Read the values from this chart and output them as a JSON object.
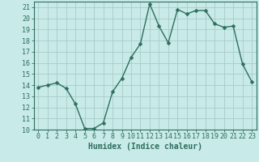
{
  "x": [
    0,
    1,
    2,
    3,
    4,
    5,
    6,
    7,
    8,
    9,
    10,
    11,
    12,
    13,
    14,
    15,
    16,
    17,
    18,
    19,
    20,
    21,
    22,
    23
  ],
  "y": [
    13.8,
    14.0,
    14.2,
    13.7,
    12.3,
    10.1,
    10.1,
    10.6,
    13.4,
    14.6,
    16.5,
    17.7,
    21.3,
    19.3,
    17.8,
    20.8,
    20.4,
    20.7,
    20.7,
    19.5,
    19.2,
    19.3,
    15.9,
    14.3
  ],
  "xlabel": "Humidex (Indice chaleur)",
  "ylim": [
    10,
    21.5
  ],
  "xlim": [
    -0.5,
    23.5
  ],
  "yticks": [
    10,
    11,
    12,
    13,
    14,
    15,
    16,
    17,
    18,
    19,
    20,
    21
  ],
  "xticks": [
    0,
    1,
    2,
    3,
    4,
    5,
    6,
    7,
    8,
    9,
    10,
    11,
    12,
    13,
    14,
    15,
    16,
    17,
    18,
    19,
    20,
    21,
    22,
    23
  ],
  "line_color": "#2d6e5e",
  "marker_color": "#2d6e5e",
  "bg_color": "#c8eae8",
  "grid_color": "#a8ccc8",
  "axis_color": "#2d6e5e",
  "label_color": "#2d6e5e",
  "tick_label_color": "#2d6e5e",
  "xlabel_fontsize": 7,
  "tick_fontsize": 6,
  "marker_size": 2.5,
  "linewidth": 1.0
}
